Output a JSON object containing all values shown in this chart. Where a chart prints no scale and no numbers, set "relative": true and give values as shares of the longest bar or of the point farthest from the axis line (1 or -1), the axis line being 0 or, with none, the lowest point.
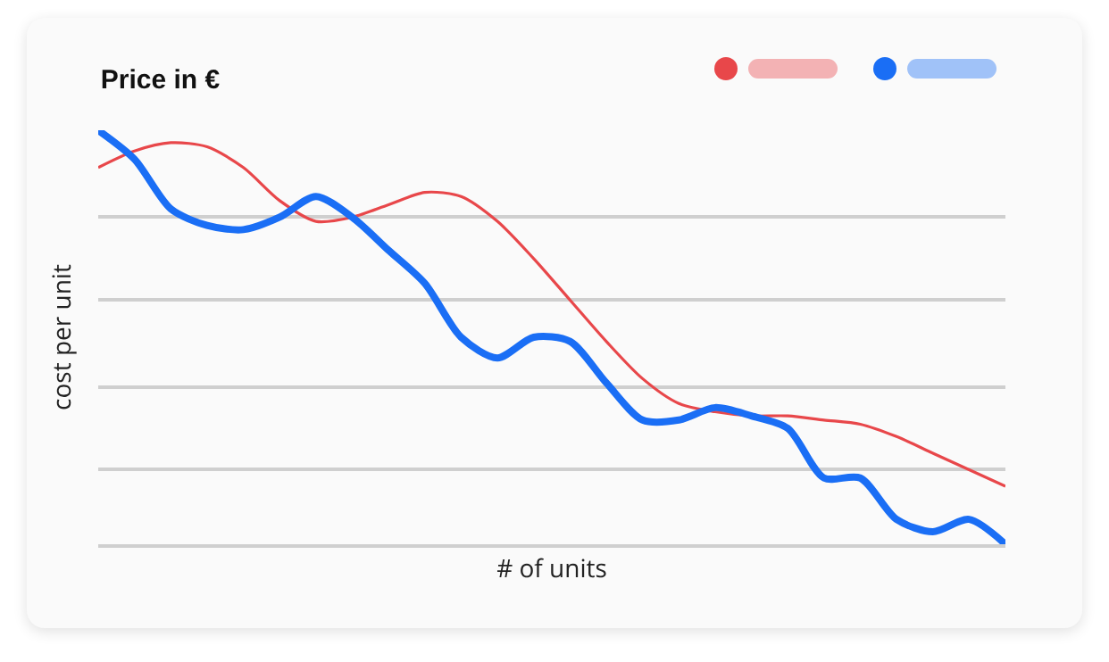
{
  "chart_data": {
    "type": "line",
    "title": "Price in €",
    "xlabel": "# of units",
    "ylabel": "cost per unit",
    "relative": true,
    "grid": "y",
    "marker": "none",
    "line_style": "solid",
    "categories": [
      null,
      null,
      null,
      null,
      null,
      null,
      null,
      null,
      null,
      null,
      null,
      null,
      null,
      null,
      null,
      null,
      null,
      null,
      null,
      null,
      null,
      null,
      null,
      null,
      null,
      null
    ],
    "series": [
      {
        "color": "#e8474a",
        "values": [
          0.91,
          0.95,
          0.97,
          0.96,
          0.91,
          0.83,
          0.78,
          0.79,
          0.82,
          0.85,
          0.84,
          0.78,
          0.69,
          0.59,
          0.49,
          0.4,
          0.34,
          0.32,
          0.31,
          0.31,
          0.3,
          0.29,
          0.26,
          0.22,
          0.18,
          0.14
        ]
      },
      {
        "color": "#1a6ef5",
        "values": [
          1.0,
          0.93,
          0.81,
          0.77,
          0.76,
          0.79,
          0.84,
          0.79,
          0.71,
          0.63,
          0.5,
          0.45,
          0.5,
          0.49,
          0.39,
          0.3,
          0.3,
          0.33,
          0.31,
          0.28,
          0.16,
          0.16,
          0.06,
          0.03,
          0.06,
          0
        ]
      }
    ]
  }
}
